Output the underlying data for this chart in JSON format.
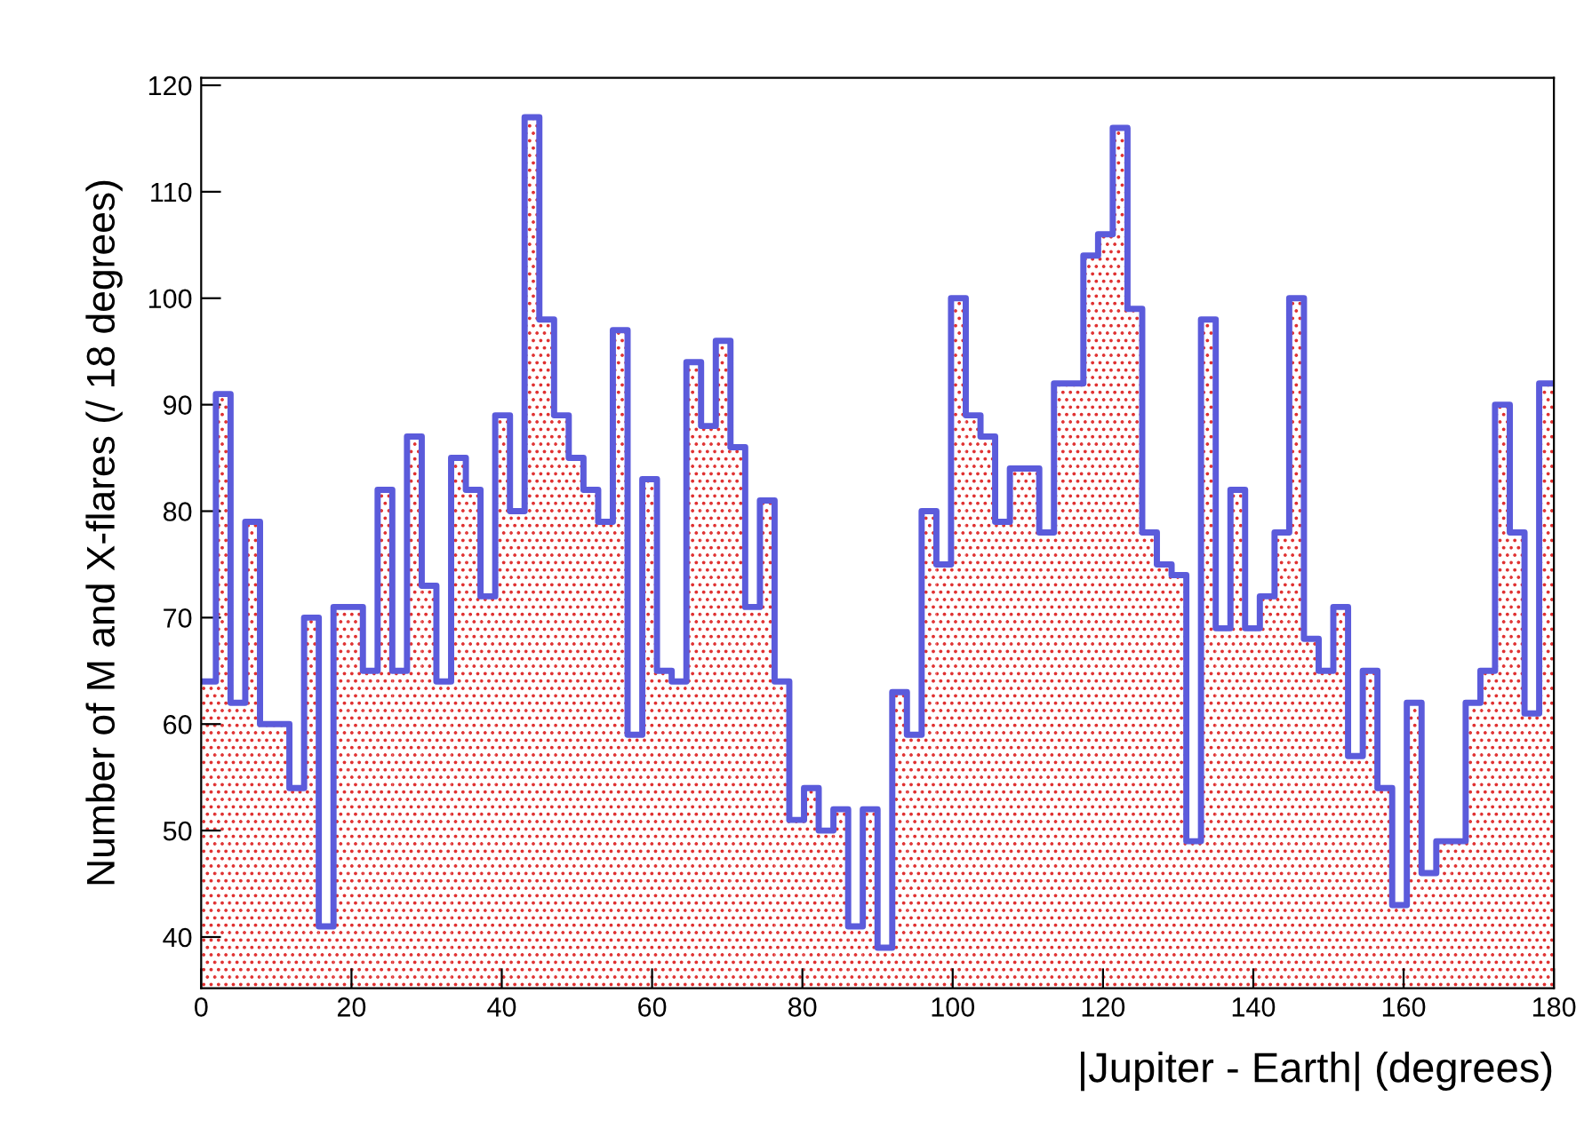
{
  "chart_data": {
    "type": "histogram",
    "xlabel": "|Jupiter - Earth| (degrees)",
    "ylabel": "Number of M and X-flares (/ 18 degrees)",
    "bins": [
      0,
      1.96,
      3.91,
      5.87,
      7.83,
      9.78,
      11.74,
      13.7,
      15.65,
      17.61,
      19.57,
      21.52,
      23.48,
      25.43,
      27.39,
      29.35,
      31.3,
      33.26,
      35.22,
      37.17,
      39.13,
      41.09,
      43.04,
      45,
      46.96,
      48.91,
      50.87,
      52.83,
      54.78,
      56.74,
      58.7,
      60.65,
      62.61,
      64.57,
      66.52,
      68.48,
      70.43,
      72.39,
      74.35,
      76.3,
      78.26,
      80.22,
      82.17,
      84.13,
      86.09,
      88.04,
      90,
      91.96,
      93.91,
      95.87,
      97.83,
      99.78,
      101.74,
      103.7,
      105.65,
      107.61,
      109.57,
      111.52,
      113.48,
      115.43,
      117.39,
      119.35,
      121.3,
      123.26,
      125.22,
      127.17,
      129.13,
      131.09,
      133.04,
      135,
      136.96,
      138.91,
      140.87,
      142.83,
      144.78,
      146.74,
      148.7,
      150.65,
      152.61,
      154.57,
      156.52,
      158.48,
      160.43,
      162.39,
      164.35,
      166.3,
      168.26,
      170.22,
      172.17,
      174.13,
      176.09,
      178.04,
      180
    ],
    "series": [
      {
        "type": "histogram",
        "color": "#e03030",
        "values": [
          64,
          91,
          62,
          79,
          60,
          60,
          54,
          70,
          41,
          71,
          71,
          65,
          82,
          65,
          87,
          73,
          64,
          85,
          82,
          72,
          89,
          80,
          117,
          98,
          89,
          85,
          82,
          79,
          97,
          59,
          83,
          65,
          64,
          94,
          88,
          96,
          86,
          71,
          81,
          64,
          51,
          54,
          50,
          52,
          41,
          52,
          39,
          63,
          59,
          80,
          75,
          100,
          89,
          87,
          79,
          84,
          84,
          78,
          92,
          92,
          104,
          106,
          116,
          99,
          78,
          75,
          74,
          49,
          98,
          69,
          82,
          69,
          72,
          78,
          100,
          68,
          65,
          71,
          57,
          65,
          54,
          43,
          62,
          46,
          49,
          49,
          62,
          65,
          90,
          78,
          61,
          92
        ]
      },
      {
        "type": "step",
        "color": "#5b5bdb",
        "x": [
          0,
          1.96,
          3.91,
          5.87,
          7.83,
          9.78,
          11.74,
          13.7,
          15.65,
          17.61,
          19.57,
          21.52,
          23.48,
          25.43,
          27.39,
          29.35,
          31.3,
          33.26,
          35.22,
          37.17,
          39.13,
          41.09,
          43.04,
          45,
          46.96,
          48.91,
          50.87,
          52.83,
          54.78,
          56.74,
          58.7,
          60.65,
          62.61,
          64.57,
          66.52,
          68.48,
          70.43,
          72.39,
          74.35,
          76.3,
          78.26,
          80.22,
          82.17,
          84.13,
          86.09,
          88.04,
          90,
          91.96,
          93.91,
          95.87,
          97.83,
          99.78,
          101.74,
          103.7,
          105.65,
          107.61,
          109.57,
          111.52,
          113.48,
          115.43,
          117.39,
          119.35,
          121.3,
          123.26,
          125.22,
          127.17,
          129.13,
          131.09,
          133.04,
          135,
          136.96,
          138.91,
          140.87,
          142.83,
          144.78,
          146.74,
          148.7,
          150.65,
          152.61,
          154.57,
          156.52,
          158.48,
          160.43,
          162.39,
          164.35,
          166.3,
          168.26,
          170.22,
          172.17,
          174.13,
          176.09,
          178.04,
          180
        ],
        "values": [
          64,
          91,
          62,
          79,
          60,
          60,
          54,
          70,
          41,
          71,
          71,
          65,
          82,
          65,
          87,
          73,
          64,
          85,
          82,
          72,
          89,
          80,
          117,
          98,
          89,
          85,
          82,
          79,
          97,
          59,
          83,
          65,
          64,
          94,
          88,
          96,
          86,
          71,
          81,
          64,
          51,
          54,
          50,
          52,
          41,
          52,
          39,
          63,
          59,
          80,
          75,
          100,
          89,
          87,
          79,
          84,
          84,
          78,
          92,
          92,
          104,
          106,
          116,
          99,
          78,
          75,
          74,
          49,
          98,
          69,
          82,
          69,
          72,
          78,
          100,
          68,
          65,
          71,
          57,
          65,
          54,
          43,
          62,
          46,
          49,
          49,
          62,
          65,
          90,
          78,
          61,
          92,
          92
        ]
      }
    ],
    "xlim": [
      0,
      180
    ],
    "ylim": [
      35.2,
      120.7
    ],
    "xticks": [
      0,
      20,
      40,
      60,
      80,
      100,
      120,
      140,
      160,
      180
    ],
    "yticks": [
      40,
      50,
      60,
      70,
      80,
      90,
      100,
      110,
      120
    ],
    "grid": false
  }
}
